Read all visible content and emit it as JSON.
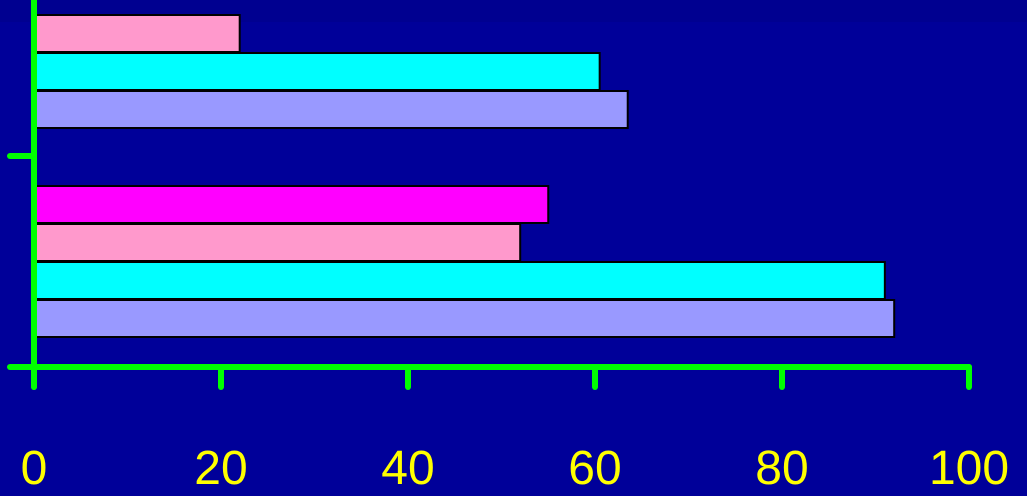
{
  "chart_data": {
    "type": "bar",
    "orientation": "horizontal",
    "title": "",
    "xlabel": "",
    "ylabel": "",
    "xlim": [
      0,
      100
    ],
    "x_ticks": [
      "0",
      "20",
      "40",
      "60",
      "80",
      "100"
    ],
    "grid": false,
    "legend": "none",
    "groups": [
      {
        "bars": [
          {
            "value": 22,
            "color": "#ff99cc"
          },
          {
            "value": 60.5,
            "color": "#00ffff"
          },
          {
            "value": 63.5,
            "color": "#9999ff"
          }
        ]
      },
      {
        "bars": [
          {
            "value": 55,
            "color": "#ff00ff"
          },
          {
            "value": 52,
            "color": "#ff99cc"
          },
          {
            "value": 91,
            "color": "#00ffff"
          },
          {
            "value": 92,
            "color": "#9999ff"
          }
        ]
      }
    ],
    "colors": {
      "background": "#000099",
      "axis": "#00ff00",
      "tick_text": "#ffff00",
      "bar_outline": "#000000"
    }
  }
}
